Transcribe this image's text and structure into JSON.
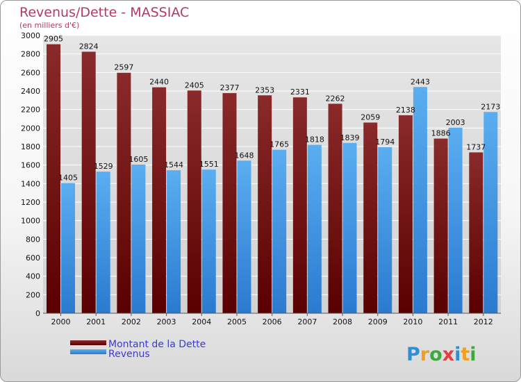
{
  "chart_data": {
    "type": "bar",
    "title": "Revenus/Dette - MASSIAC",
    "subtitle": "(en milliers d'€)",
    "categories": [
      "2000",
      "2001",
      "2002",
      "2003",
      "2004",
      "2005",
      "2006",
      "2007",
      "2008",
      "2009",
      "2010",
      "2011",
      "2012"
    ],
    "series": [
      {
        "name": "Montant de la Dette",
        "values": [
          2905,
          2824,
          2597,
          2440,
          2405,
          2377,
          2353,
          2331,
          2262,
          2059,
          2138,
          1886,
          1737
        ]
      },
      {
        "name": "Revenus",
        "values": [
          1405,
          1529,
          1605,
          1544,
          1551,
          1648,
          1765,
          1818,
          1839,
          1794,
          2443,
          2003,
          2173
        ]
      }
    ],
    "ylim": [
      0,
      3000
    ],
    "yticks": [
      0,
      200,
      400,
      600,
      800,
      1000,
      1200,
      1400,
      1600,
      1800,
      2000,
      2200,
      2400,
      2600,
      2800,
      3000
    ],
    "grid": true,
    "legend_position": "bottom-left",
    "colors": {
      "dette_top": "#8a2a2a",
      "dette_bottom": "#5a0000",
      "revenus_top": "#5aaef0",
      "revenus_bottom": "#2a7ad0"
    }
  },
  "logo_text": "Proxiti"
}
